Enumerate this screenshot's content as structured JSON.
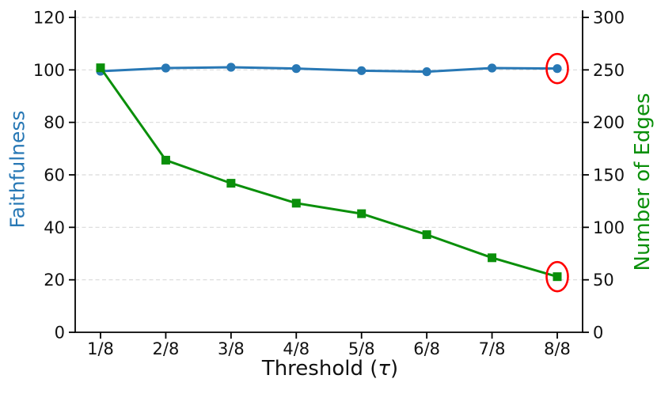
{
  "chart_data": {
    "type": "line",
    "title": "",
    "xlabel": "Threshold (τ)",
    "xlabel_parts": {
      "prefix": "Threshold (",
      "symbol": "τ",
      "suffix": ")"
    },
    "categories": [
      "1/8",
      "2/8",
      "3/8",
      "4/8",
      "5/8",
      "6/8",
      "7/8",
      "8/8"
    ],
    "left_axis": {
      "label": "Faithfulness",
      "color": "#2878b5",
      "min": 0,
      "max": 120,
      "ticks": [
        0,
        20,
        40,
        60,
        80,
        100,
        120
      ]
    },
    "right_axis": {
      "label": "Number of Edges",
      "color": "#0a8f0a",
      "min": 0,
      "max": 300,
      "ticks": [
        0,
        50,
        100,
        150,
        200,
        250,
        300
      ]
    },
    "series": [
      {
        "name": "Faithfulness",
        "axis": "left",
        "color": "#2878b5",
        "marker": "circle",
        "values": [
          99.5,
          100.7,
          101.0,
          100.5,
          99.7,
          99.3,
          100.7,
          100.5
        ]
      },
      {
        "name": "Number of Edges",
        "axis": "right",
        "color": "#0a8f0a",
        "marker": "square",
        "values": [
          252,
          164,
          142,
          123,
          113,
          93,
          71,
          53
        ]
      }
    ],
    "annotations": [
      {
        "type": "ellipse",
        "series": "Faithfulness",
        "index": 7,
        "color": "#ff0000"
      },
      {
        "type": "ellipse",
        "series": "Number of Edges",
        "index": 7,
        "color": "#ff0000"
      }
    ],
    "grid": {
      "horizontal": true,
      "style": "dashed",
      "color": "#d9d9d9"
    },
    "legend": "none"
  }
}
